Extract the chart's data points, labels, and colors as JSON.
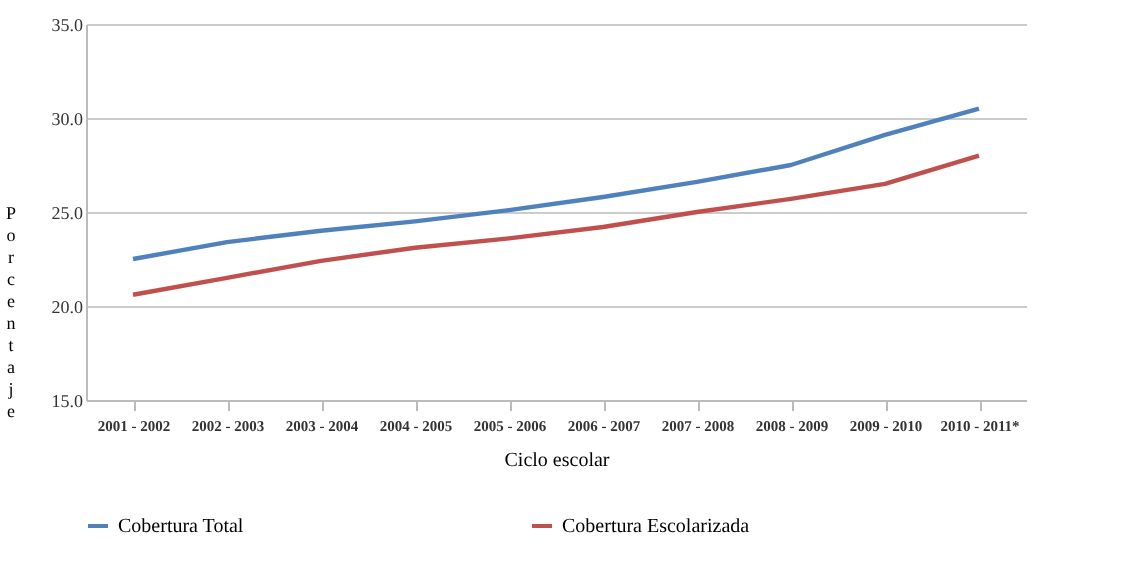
{
  "chart_data": {
    "type": "line",
    "xlabel": "Ciclo escolar",
    "ylabel": "Porcentaje",
    "categories": [
      "2001 - 2002",
      "2002 - 2003",
      "2003 - 2004",
      "2004 - 2005",
      "2005 - 2006",
      "2006 - 2007",
      "2007 - 2008",
      "2008 - 2009",
      "2009 - 2010",
      "2010 - 2011*"
    ],
    "series": [
      {
        "name": "Cobertura Total",
        "color": "#4f81bd",
        "values": [
          22.5,
          23.4,
          24.0,
          24.5,
          25.1,
          25.8,
          26.6,
          27.5,
          29.1,
          30.5
        ]
      },
      {
        "name": "Cobertura Escolarizada",
        "color": "#c0504d",
        "values": [
          20.6,
          21.5,
          22.4,
          23.1,
          23.6,
          24.2,
          25.0,
          25.7,
          26.5,
          28.0
        ]
      }
    ],
    "ylim": [
      15,
      35
    ],
    "yticks": [
      {
        "value": 15,
        "label": "15.0"
      },
      {
        "value": 20,
        "label": "20.0"
      },
      {
        "value": 25,
        "label": "25.0"
      },
      {
        "value": 30,
        "label": "30.0"
      },
      {
        "value": 35,
        "label": "35.0"
      }
    ],
    "grid": "y",
    "legend": "bottom",
    "marker": "none",
    "line_style": "solid"
  }
}
